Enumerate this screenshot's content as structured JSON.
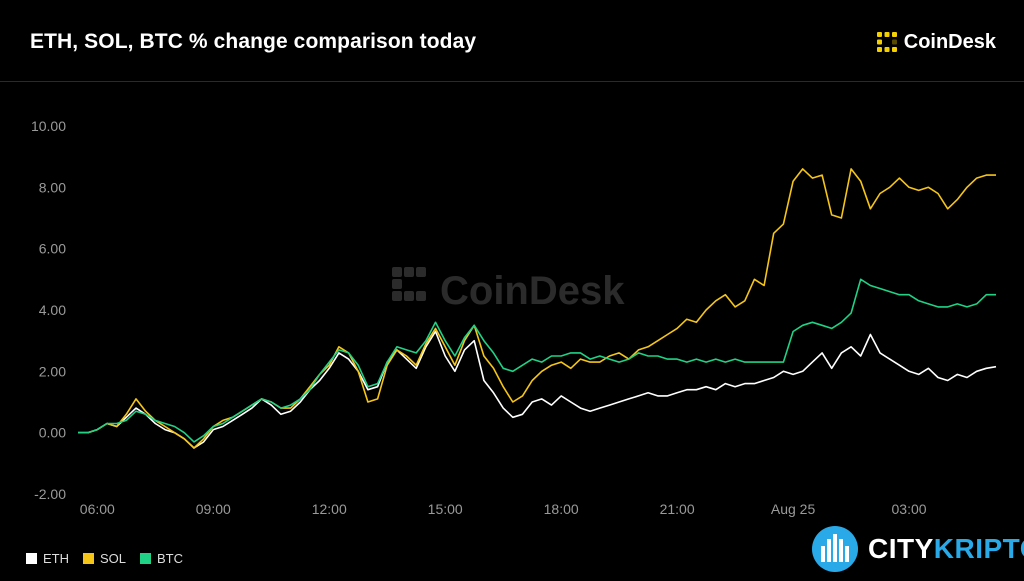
{
  "header": {
    "title": "ETH, SOL, BTC % change comparison today"
  },
  "brand": {
    "name": "CoinDesk",
    "icon": "coindesk-logo-icon",
    "accent": "#f5d000"
  },
  "watermark": {
    "text": "CoinDesk"
  },
  "footer_brand": {
    "part1": "CITY",
    "part2": "KRIPTO",
    "icon": "cityscape-circle-icon",
    "accent": "#29a9e8"
  },
  "chart_data": {
    "type": "line",
    "title": "ETH, SOL, BTC % change comparison today",
    "xlabel": "",
    "ylabel": "",
    "ylim": [
      -2,
      10
    ],
    "xlim": [
      5.5,
      29.25
    ],
    "grid": false,
    "legend_position": "bottom-left",
    "y_ticks": [
      "-2.00",
      "0.00",
      "2.00",
      "4.00",
      "6.00",
      "8.00",
      "10.00"
    ],
    "x_ticks": [
      {
        "label": "06:00",
        "x": 6
      },
      {
        "label": "09:00",
        "x": 9
      },
      {
        "label": "12:00",
        "x": 12
      },
      {
        "label": "15:00",
        "x": 15
      },
      {
        "label": "18:00",
        "x": 18
      },
      {
        "label": "21:00",
        "x": 21
      },
      {
        "label": "Aug 25",
        "x": 24
      },
      {
        "label": "03:00",
        "x": 27
      }
    ],
    "x": [
      5.5,
      5.75,
      6,
      6.25,
      6.5,
      6.75,
      7,
      7.25,
      7.5,
      7.75,
      8,
      8.25,
      8.5,
      8.75,
      9,
      9.25,
      9.5,
      9.75,
      10,
      10.25,
      10.5,
      10.75,
      11,
      11.25,
      11.5,
      11.75,
      12,
      12.25,
      12.5,
      12.75,
      13,
      13.25,
      13.5,
      13.75,
      14,
      14.25,
      14.5,
      14.75,
      15,
      15.25,
      15.5,
      15.75,
      16,
      16.25,
      16.5,
      16.75,
      17,
      17.25,
      17.5,
      17.75,
      18,
      18.25,
      18.5,
      18.75,
      19,
      19.25,
      19.5,
      19.75,
      20,
      20.25,
      20.5,
      20.75,
      21,
      21.25,
      21.5,
      21.75,
      22,
      22.25,
      22.5,
      22.75,
      23,
      23.25,
      23.5,
      23.75,
      24,
      24.25,
      24.5,
      24.75,
      25,
      25.25,
      25.5,
      25.75,
      26,
      26.25,
      26.5,
      26.75,
      27,
      27.25,
      27.5,
      27.75,
      28,
      28.25,
      28.5,
      28.75,
      29,
      29.25
    ],
    "series": [
      {
        "name": "ETH",
        "color": "#ffffff",
        "values": [
          0,
          0,
          0.1,
          0.3,
          0.2,
          0.5,
          0.8,
          0.6,
          0.3,
          0.1,
          0,
          -0.2,
          -0.5,
          -0.3,
          0.1,
          0.2,
          0.4,
          0.6,
          0.8,
          1.1,
          0.9,
          0.6,
          0.7,
          1.0,
          1.4,
          1.7,
          2.1,
          2.6,
          2.4,
          2.0,
          1.4,
          1.5,
          2.3,
          2.7,
          2.4,
          2.1,
          2.8,
          3.3,
          2.5,
          2.0,
          2.7,
          3.0,
          1.7,
          1.3,
          0.8,
          0.5,
          0.6,
          1.0,
          1.1,
          0.9,
          1.2,
          1.0,
          0.8,
          0.7,
          0.8,
          0.9,
          1.0,
          1.1,
          1.2,
          1.3,
          1.2,
          1.2,
          1.3,
          1.4,
          1.4,
          1.5,
          1.4,
          1.6,
          1.5,
          1.6,
          1.6,
          1.7,
          1.8,
          2.0,
          1.9,
          2.0,
          2.3,
          2.6,
          2.1,
          2.6,
          2.8,
          2.5,
          3.2,
          2.6,
          2.4,
          2.2,
          2.0,
          1.9,
          2.1,
          1.8,
          1.7,
          1.9,
          1.8,
          2.0,
          2.1,
          2.15
        ]
      },
      {
        "name": "SOL",
        "color": "#f5c518",
        "values": [
          0,
          0,
          0.1,
          0.3,
          0.2,
          0.6,
          1.1,
          0.7,
          0.4,
          0.2,
          0,
          -0.2,
          -0.5,
          -0.2,
          0.2,
          0.4,
          0.5,
          0.7,
          0.9,
          1.1,
          1.0,
          0.8,
          0.8,
          1.1,
          1.5,
          1.9,
          2.2,
          2.8,
          2.6,
          2.0,
          1.0,
          1.1,
          2.2,
          2.7,
          2.5,
          2.2,
          2.9,
          3.4,
          2.8,
          2.2,
          3.0,
          3.5,
          2.5,
          2.1,
          1.5,
          1.0,
          1.2,
          1.7,
          2.0,
          2.2,
          2.3,
          2.1,
          2.4,
          2.3,
          2.3,
          2.5,
          2.6,
          2.4,
          2.7,
          2.8,
          3.0,
          3.2,
          3.4,
          3.7,
          3.6,
          4.0,
          4.3,
          4.5,
          4.1,
          4.3,
          5.0,
          4.8,
          6.5,
          6.8,
          8.2,
          8.6,
          8.3,
          8.4,
          7.1,
          7.0,
          8.6,
          8.2,
          7.3,
          7.8,
          8.0,
          8.3,
          8.0,
          7.9,
          8.0,
          7.8,
          7.3,
          7.6,
          8.0,
          8.3,
          8.4,
          8.4
        ]
      },
      {
        "name": "BTC",
        "color": "#1fd286",
        "values": [
          0,
          0,
          0.1,
          0.3,
          0.3,
          0.4,
          0.7,
          0.6,
          0.4,
          0.3,
          0.2,
          0,
          -0.3,
          -0.1,
          0.2,
          0.3,
          0.5,
          0.7,
          0.9,
          1.1,
          1.0,
          0.8,
          0.9,
          1.1,
          1.4,
          1.9,
          2.3,
          2.7,
          2.6,
          2.2,
          1.5,
          1.6,
          2.3,
          2.8,
          2.7,
          2.6,
          3.0,
          3.6,
          3.0,
          2.5,
          3.1,
          3.5,
          3.0,
          2.6,
          2.1,
          2.0,
          2.2,
          2.4,
          2.3,
          2.5,
          2.5,
          2.6,
          2.6,
          2.4,
          2.5,
          2.4,
          2.3,
          2.4,
          2.6,
          2.5,
          2.5,
          2.4,
          2.4,
          2.3,
          2.4,
          2.3,
          2.4,
          2.3,
          2.4,
          2.3,
          2.3,
          2.3,
          2.3,
          2.3,
          3.3,
          3.5,
          3.6,
          3.5,
          3.4,
          3.6,
          3.9,
          5.0,
          4.8,
          4.7,
          4.6,
          4.5,
          4.5,
          4.3,
          4.2,
          4.1,
          4.1,
          4.2,
          4.1,
          4.2,
          4.5,
          4.5
        ]
      }
    ]
  }
}
